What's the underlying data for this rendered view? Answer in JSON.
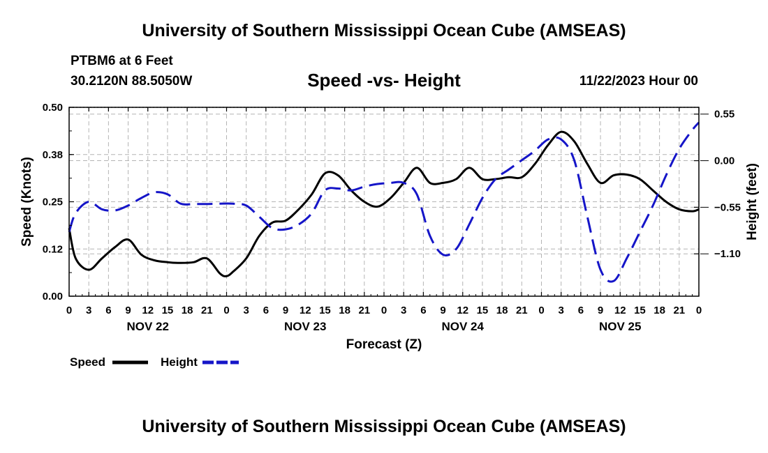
{
  "header": {
    "title": "University of Southern Mississippi Ocean Cube (AMSEAS)",
    "station": "PTBM6 at 6 Feet",
    "coords": "30.2120N  88.5050W",
    "subtitle": "Speed -vs- Height",
    "datetime": "11/22/2023 Hour 00"
  },
  "footer": {
    "title": "University of Southern Mississippi Ocean Cube (AMSEAS)"
  },
  "chart_data": {
    "type": "line",
    "xlabel": "Forecast (Z)",
    "ylabel_left": "Speed (Knots)",
    "ylabel_right": "Height (feet)",
    "xlim": [
      0,
      96
    ],
    "ylim_left": [
      0,
      0.5
    ],
    "ylim_right": [
      -1.6,
      0.63
    ],
    "x_tick_labels": [
      "0",
      "3",
      "6",
      "9",
      "12",
      "15",
      "18",
      "21",
      "0",
      "3",
      "6",
      "9",
      "12",
      "15",
      "18",
      "21",
      "0",
      "3",
      "6",
      "9",
      "12",
      "15",
      "18",
      "21",
      "0",
      "3",
      "6",
      "9",
      "12",
      "15",
      "18",
      "21",
      "0"
    ],
    "left_ticks": [
      {
        "value": 0.0,
        "label": "0.00"
      },
      {
        "value": 0.125,
        "label": "0.12"
      },
      {
        "value": 0.25,
        "label": "0.25"
      },
      {
        "value": 0.375,
        "label": "0.38"
      },
      {
        "value": 0.5,
        "label": "0.50"
      }
    ],
    "right_ticks": [
      {
        "value": 0.55,
        "label": "0.55"
      },
      {
        "value": 0.0,
        "label": "0.00"
      },
      {
        "value": -0.55,
        "label": "−0.55"
      },
      {
        "value": -1.1,
        "label": "−1.10"
      }
    ],
    "day_labels": [
      {
        "x": 12,
        "label": "NOV 22"
      },
      {
        "x": 36,
        "label": "NOV 23"
      },
      {
        "x": 60,
        "label": "NOV 24"
      },
      {
        "x": 84,
        "label": "NOV 25"
      }
    ],
    "legend": [
      {
        "name": "Speed",
        "color": "#000000",
        "style": "solid"
      },
      {
        "name": "Height",
        "color": "#1515c8",
        "style": "dashed"
      }
    ],
    "series": [
      {
        "name": "Speed",
        "axis": "left",
        "color": "#000000",
        "x": [
          0,
          1,
          3,
          5,
          7,
          9,
          11,
          13,
          15,
          17,
          19,
          21,
          23,
          24,
          25,
          27,
          29,
          31,
          33,
          35,
          37,
          39,
          41,
          43,
          45,
          47,
          49,
          51,
          53,
          55,
          57,
          59,
          61,
          63,
          65,
          67,
          69,
          71,
          73,
          75,
          77,
          79,
          81,
          83,
          85,
          87,
          89,
          91,
          93,
          95,
          96
        ],
        "y": [
          0.18,
          0.1,
          0.07,
          0.1,
          0.13,
          0.15,
          0.11,
          0.095,
          0.09,
          0.088,
          0.09,
          0.1,
          0.06,
          0.053,
          0.065,
          0.1,
          0.16,
          0.195,
          0.2,
          0.23,
          0.27,
          0.325,
          0.32,
          0.28,
          0.25,
          0.237,
          0.26,
          0.3,
          0.34,
          0.3,
          0.3,
          0.31,
          0.34,
          0.31,
          0.31,
          0.315,
          0.315,
          0.35,
          0.4,
          0.435,
          0.41,
          0.35,
          0.3,
          0.32,
          0.322,
          0.31,
          0.28,
          0.25,
          0.23,
          0.225,
          0.23
        ]
      },
      {
        "name": "Height",
        "axis": "left",
        "color": "#1515c8",
        "x": [
          0,
          1,
          3,
          5,
          7,
          9,
          11,
          13,
          15,
          17,
          19,
          21,
          23,
          25,
          27,
          29,
          31,
          33,
          35,
          37,
          39,
          41,
          43,
          45,
          47,
          49,
          51,
          53,
          55,
          57,
          59,
          61,
          63,
          65,
          67,
          69,
          71,
          73,
          75,
          77,
          79,
          81,
          83,
          85,
          87,
          89,
          91,
          93,
          95,
          96
        ],
        "y": [
          0.17,
          0.22,
          0.25,
          0.23,
          0.227,
          0.24,
          0.26,
          0.275,
          0.27,
          0.245,
          0.244,
          0.244,
          0.245,
          0.245,
          0.24,
          0.21,
          0.18,
          0.177,
          0.19,
          0.22,
          0.28,
          0.285,
          0.28,
          0.29,
          0.297,
          0.3,
          0.3,
          0.27,
          0.16,
          0.11,
          0.125,
          0.19,
          0.26,
          0.31,
          0.335,
          0.36,
          0.385,
          0.415,
          0.415,
          0.36,
          0.21,
          0.07,
          0.04,
          0.1,
          0.17,
          0.24,
          0.32,
          0.39,
          0.44,
          0.46
        ]
      }
    ]
  }
}
